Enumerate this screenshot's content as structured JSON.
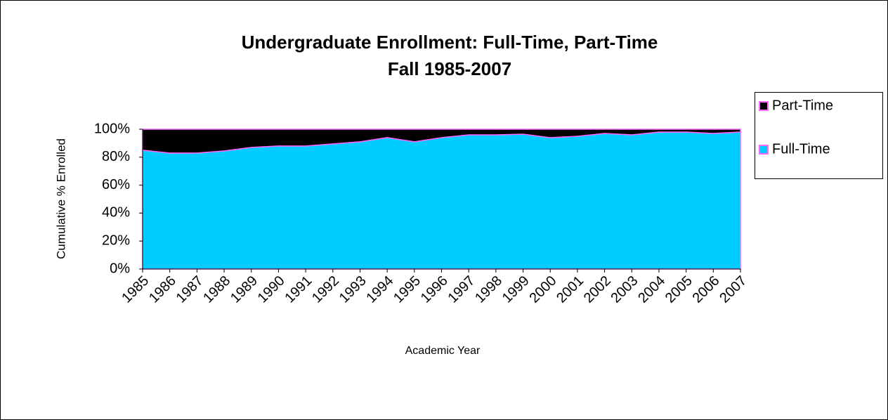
{
  "chart_data": {
    "type": "stacked_area",
    "title": "Undergraduate Enrollment: Full-Time, Part-Time",
    "subtitle": "Fall 1985-2007",
    "x_label": "Academic Year",
    "y_label": "Cumulative % Enrolled",
    "categories": [
      "1985",
      "1986",
      "1987",
      "1988",
      "1989",
      "1990",
      "1991",
      "1992",
      "1993",
      "1994",
      "1995",
      "1996",
      "1997",
      "1998",
      "1999",
      "2000",
      "2001",
      "2002",
      "2003",
      "2004",
      "2005",
      "2006",
      "2007"
    ],
    "series": [
      {
        "name": "Full-Time",
        "color": "#00ccff",
        "values": [
          85,
          83,
          83,
          84.5,
          87,
          88,
          88,
          89.5,
          91,
          94,
          91,
          94,
          96,
          96,
          96.5,
          94,
          95,
          97,
          96,
          98,
          98,
          97,
          98
        ]
      },
      {
        "name": "Part-Time",
        "color": "#000000",
        "values": [
          15,
          17,
          17,
          15.5,
          13,
          12,
          12,
          10.5,
          9,
          6,
          9,
          6,
          4,
          4,
          3.5,
          6,
          5,
          3,
          4,
          2,
          2,
          3,
          2
        ]
      }
    ],
    "edge_color": "#ff66ff",
    "ylim": [
      0,
      100
    ],
    "yticks": [
      {
        "value": 0,
        "label": "0%"
      },
      {
        "value": 20,
        "label": "20%"
      },
      {
        "value": 40,
        "label": "40%"
      },
      {
        "value": 60,
        "label": "60%"
      },
      {
        "value": 80,
        "label": "80%"
      },
      {
        "value": 100,
        "label": "100%"
      }
    ],
    "legend": "right"
  }
}
